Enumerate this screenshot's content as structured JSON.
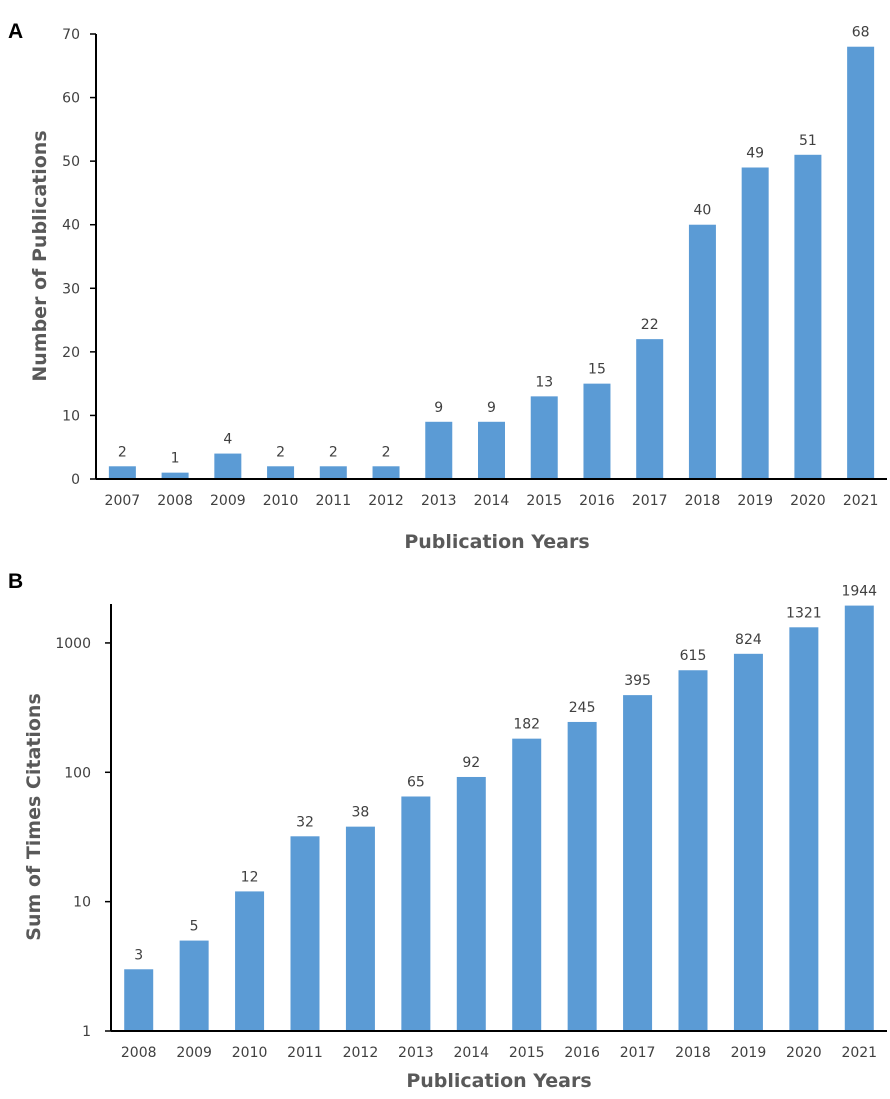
{
  "colors": {
    "bar": "#5B9BD5",
    "axis": "#000000",
    "text": "#404040",
    "title": "#595959"
  },
  "chart_data": [
    {
      "panel": "A",
      "type": "bar",
      "categories": [
        "2007",
        "2008",
        "2009",
        "2010",
        "2011",
        "2012",
        "2013",
        "2014",
        "2015",
        "2016",
        "2017",
        "2018",
        "2019",
        "2020",
        "2021"
      ],
      "values": [
        2,
        1,
        4,
        2,
        2,
        2,
        9,
        9,
        13,
        15,
        22,
        40,
        49,
        51,
        68
      ],
      "data_labels": [
        "2",
        "1",
        "4",
        "2",
        "2",
        "2",
        "9",
        "9",
        "13",
        "15",
        "22",
        "40",
        "49",
        "51",
        "68"
      ],
      "ylim": [
        0,
        70
      ],
      "yticks": [
        0,
        10,
        20,
        30,
        40,
        50,
        60,
        70
      ],
      "ytick_labels": [
        "0",
        "10",
        "20",
        "30",
        "40",
        "50",
        "60",
        "70"
      ],
      "yscale": "linear",
      "xlabel": "Publication Years",
      "ylabel": "Number of Publications",
      "grid": false,
      "legend": "none"
    },
    {
      "panel": "B",
      "type": "bar",
      "categories": [
        "2008",
        "2009",
        "2010",
        "2011",
        "2012",
        "2013",
        "2014",
        "2015",
        "2016",
        "2017",
        "2018",
        "2019",
        "2020",
        "2021"
      ],
      "values": [
        3,
        5,
        12,
        32,
        38,
        65,
        92,
        182,
        245,
        395,
        615,
        824,
        1321,
        1944
      ],
      "data_labels": [
        "3",
        "5",
        "12",
        "32",
        "38",
        "65",
        "92",
        "182",
        "245",
        "395",
        "615",
        "824",
        "1321",
        "1944"
      ],
      "ylim": [
        1,
        2000
      ],
      "yticks": [
        1,
        10,
        100,
        1000
      ],
      "ytick_labels": [
        "1",
        "10",
        "100",
        "1000"
      ],
      "yscale": "log",
      "xlabel": "Publication Years",
      "ylabel": "Sum of Times Citations",
      "grid": false,
      "legend": "none"
    }
  ]
}
